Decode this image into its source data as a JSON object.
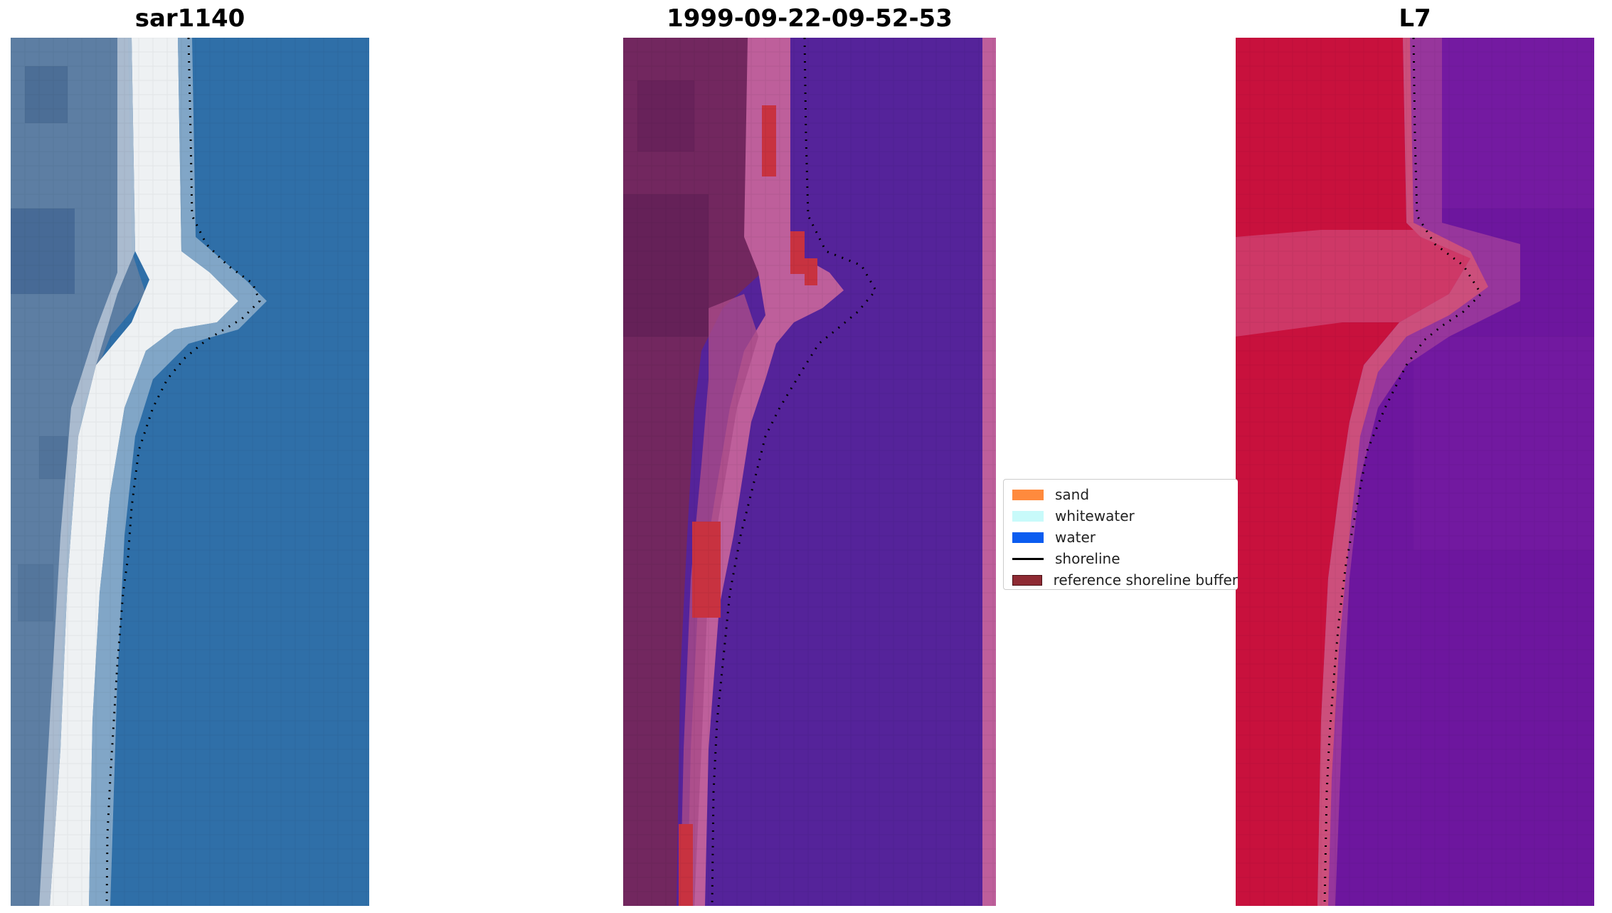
{
  "titles": {
    "left": "sar1140",
    "middle": "1999-09-22-09-52-53",
    "right": "L7"
  },
  "legend": [
    {
      "label": "sand",
      "kind": "patch",
      "color": "#ff8a3d"
    },
    {
      "label": "whitewater",
      "kind": "patch",
      "color": "#c8fafa"
    },
    {
      "label": "water",
      "kind": "patch",
      "color": "#0a5cf0"
    },
    {
      "label": "shoreline",
      "kind": "line",
      "color": "#000000"
    },
    {
      "label": "reference shoreline buffer",
      "kind": "patch",
      "color": "#8e2a33"
    }
  ],
  "colors": {
    "rgb_water": "#2f6fa8",
    "rgb_foam": "#f2f4f4",
    "rgb_land": "#5a7da3",
    "class_water": "#55239a",
    "class_sand": "#be5f9b",
    "class_land": "#72275f",
    "class_buffer": "#c83240",
    "index_land": "#c8113d",
    "index_mid": "#cc4f7c",
    "index_water": "#6d169e",
    "shoreline": "#000000"
  }
}
